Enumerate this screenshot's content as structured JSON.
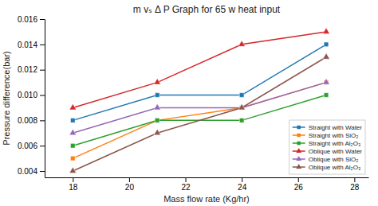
{
  "chart_data": {
    "type": "line",
    "title": "m vₛ Δ P Graph for 65 w heat input",
    "xlabel": "Mass flow rate (Kg/hr)",
    "ylabel": "Pressure difference(bar)",
    "x": [
      18,
      21,
      24,
      27
    ],
    "series": [
      {
        "name": "Straight with Water",
        "marker": "square",
        "values": [
          0.008,
          0.01,
          0.01,
          0.014
        ]
      },
      {
        "name": "Straight with SiO₂",
        "marker": "square",
        "values": [
          0.005,
          0.008,
          0.009,
          0.011
        ]
      },
      {
        "name": "Straight with Al₂O₃",
        "marker": "square",
        "values": [
          0.006,
          0.008,
          0.008,
          0.01
        ]
      },
      {
        "name": "Oblique with Water",
        "marker": "triangle",
        "values": [
          0.009,
          0.011,
          0.014,
          0.015
        ]
      },
      {
        "name": "Oblique with SiO₂",
        "marker": "triangle",
        "values": [
          0.007,
          0.009,
          0.009,
          0.011
        ]
      },
      {
        "name": "Oblique with Al₂O₃",
        "marker": "triangle",
        "values": [
          0.004,
          0.007,
          0.009,
          0.013
        ]
      }
    ],
    "xlim": [
      17.0,
      28.5
    ],
    "ylim": [
      0.0035,
      0.016
    ],
    "xticks": [
      18,
      20,
      22,
      24,
      26,
      28
    ],
    "yticks": [
      0.004,
      0.006,
      0.008,
      {
        "value": 0.01,
        "label": "0.010"
      },
      0.012,
      0.014,
      0.016
    ],
    "grid": false,
    "legend": "lower right"
  }
}
